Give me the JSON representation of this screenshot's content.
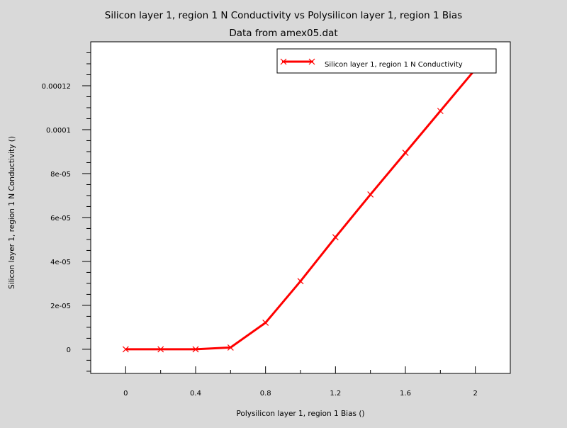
{
  "chart_data": {
    "type": "line",
    "title": "Silicon layer 1, region 1 N Conductivity vs Polysilicon layer 1, region 1 Bias",
    "subtitle": "Data from amex05.dat",
    "xlabel": "Polysilicon layer 1, region 1 Bias ()",
    "ylabel": "Silicon layer 1, region 1 N Conductivity ()",
    "xlim": [
      -0.2,
      2.2
    ],
    "ylim": [
      -1.1e-05,
      0.00014
    ],
    "x_ticks": [
      0,
      0.4,
      0.8,
      1.2,
      1.6,
      2
    ],
    "x_tick_labels": [
      "0",
      "0.4",
      "0.8",
      "1.2",
      "1.6",
      "2"
    ],
    "y_ticks": [
      0,
      2e-05,
      4e-05,
      6e-05,
      8e-05,
      0.0001,
      0.00012
    ],
    "y_tick_labels": [
      "0",
      "2e-05",
      "4e-05",
      "6e-05",
      "8e-05",
      "0.0001",
      "0.00012"
    ],
    "legend_position": "top-right",
    "series": [
      {
        "name": "Silicon layer 1, region 1 N Conductivity",
        "color": "#ff0000",
        "marker": "x",
        "x": [
          0,
          0.2,
          0.4,
          0.6,
          0.8,
          1.0,
          1.2,
          1.4,
          1.6,
          1.8,
          2.0
        ],
        "y": [
          0,
          0,
          0,
          8e-07,
          1.21e-05,
          3.1e-05,
          5.1e-05,
          7.05e-05,
          8.95e-05,
          0.0001085,
          0.0001275
        ]
      }
    ]
  }
}
